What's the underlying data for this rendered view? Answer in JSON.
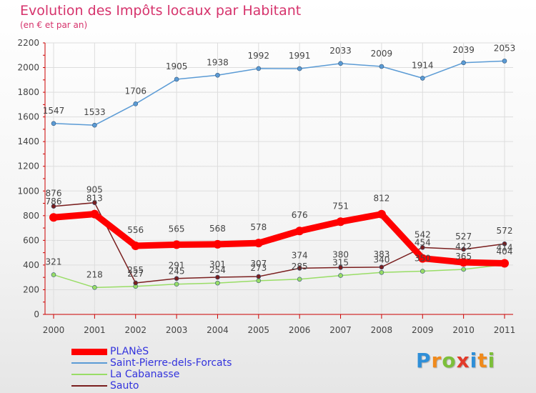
{
  "header": {
    "title": "Evolution des Impôts locaux par Habitant",
    "subtitle": "(en € et par an)"
  },
  "logo": {
    "text": "Proxiti",
    "letters": [
      "P",
      "r",
      "o",
      "x",
      "i",
      "t",
      "i"
    ],
    "colors": [
      "#2f8fd8",
      "#f08a1c",
      "#7cbf3a",
      "#e23a2a",
      "#2f8fd8",
      "#f08a1c",
      "#7cbf3a"
    ]
  },
  "chart_data": {
    "type": "line",
    "title": "Evolution des Impôts locaux par Habitant",
    "subtitle": "(en € et par an)",
    "xlabel": "",
    "ylabel": "",
    "ylim": [
      0,
      2200
    ],
    "yticks": [
      0,
      200,
      400,
      600,
      800,
      1000,
      1200,
      1400,
      1600,
      1800,
      2000,
      2200
    ],
    "grid": true,
    "legend_position": "bottom-left",
    "categories": [
      "2000",
      "2001",
      "2002",
      "2003",
      "2004",
      "2005",
      "2006",
      "2007",
      "2008",
      "2009",
      "2010",
      "2011"
    ],
    "series": [
      {
        "name": "PLANèS",
        "color": "#ff0000",
        "values": [
          786,
          813,
          556,
          565,
          568,
          578,
          676,
          751,
          812,
          454,
          422,
          414
        ],
        "labels": [
          "786",
          "813",
          "556",
          "565",
          "568",
          "578",
          "676",
          "751",
          "812",
          "454",
          "422",
          "414"
        ]
      },
      {
        "name": "Saint-Pierre-dels-Forcats",
        "color": "#5b9bd5",
        "values": [
          1547,
          1533,
          1706,
          1905,
          1938,
          1992,
          1991,
          2033,
          2009,
          1914,
          2039,
          2053
        ],
        "labels": [
          "1547",
          "1533",
          "1706",
          "1905",
          "1938",
          "1992",
          "1991",
          "2033",
          "2009",
          "1914",
          "2039",
          "2053"
        ]
      },
      {
        "name": "La Cabanasse",
        "color": "#99dd66",
        "values": [
          321,
          218,
          227,
          245,
          254,
          273,
          285,
          315,
          340,
          350,
          365,
          404
        ],
        "labels": [
          "321",
          "218",
          "227",
          "245",
          "254",
          "273",
          "285",
          "315",
          "340",
          "350",
          "365",
          "404"
        ]
      },
      {
        "name": "Sauto",
        "color": "#7a1f1f",
        "values": [
          876,
          905,
          255,
          291,
          301,
          307,
          374,
          380,
          383,
          542,
          527,
          572
        ],
        "labels": [
          "876",
          "905",
          "255",
          "291",
          "301",
          "307",
          "374",
          "380",
          "383",
          "542",
          "527",
          "572"
        ]
      }
    ]
  }
}
